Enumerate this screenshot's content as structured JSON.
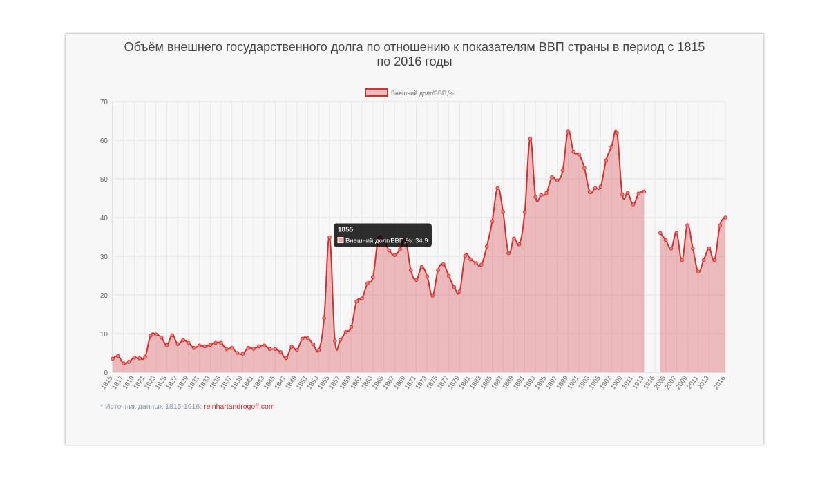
{
  "chart_data": {
    "type": "line",
    "title": "Объём внешнего государственного долга по отношению к показателям ВВП страны в период с 1815 по 2016 годы",
    "categories": [
      "1815",
      "1816",
      "1817",
      "1818",
      "1819",
      "1820",
      "1821",
      "1822",
      "1823",
      "1824",
      "1825",
      "1826",
      "1827",
      "1828",
      "1829",
      "1830",
      "1831",
      "1832",
      "1833",
      "1834",
      "1835",
      "1836",
      "1837",
      "1838",
      "1839",
      "1840",
      "1841",
      "1842",
      "1843",
      "1844",
      "1845",
      "1846",
      "1847",
      "1848",
      "1849",
      "1850",
      "1851",
      "1852",
      "1853",
      "1854",
      "1855",
      "1856",
      "1857",
      "1858",
      "1859",
      "1860",
      "1861",
      "1862",
      "1863",
      "1864",
      "1865",
      "1866",
      "1867",
      "1868",
      "1869",
      "1870",
      "1871",
      "1872",
      "1873",
      "1874",
      "1875",
      "1876",
      "1877",
      "1878",
      "1879",
      "1880",
      "1881",
      "1882",
      "1883",
      "1884",
      "1885",
      "1886",
      "1887",
      "1888",
      "1889",
      "1890",
      "1891",
      "1892",
      "1893",
      "1894",
      "1895",
      "1896",
      "1897",
      "1898",
      "1899",
      "1900",
      "1901",
      "1902",
      "1903",
      "1904",
      "1905",
      "1906",
      "1907",
      "1908",
      "1909",
      "1910",
      "1911",
      "1912",
      "1913",
      "1914",
      "1916",
      "2004",
      "2005",
      "2006",
      "2007",
      "2008",
      "2009",
      "2010",
      "2011",
      "2012",
      "2013",
      "2014",
      "2015",
      "2016"
    ],
    "series": [
      {
        "name": "Внешний долг/ВВП,%",
        "color": "#d32f2f",
        "fill": "rgba(214,72,72,0.35)",
        "values": [
          3.5,
          4.2,
          2.3,
          2.7,
          3.8,
          3.6,
          4.0,
          9.5,
          9.8,
          9.0,
          7.0,
          9.6,
          7.3,
          8.3,
          7.6,
          6.3,
          6.9,
          6.7,
          7.1,
          7.6,
          7.6,
          6.0,
          6.3,
          5.0,
          4.8,
          6.3,
          6.1,
          6.7,
          6.9,
          6.0,
          6.0,
          5.2,
          3.7,
          6.6,
          5.8,
          8.7,
          8.8,
          7.2,
          5.7,
          14.0,
          34.9,
          8.1,
          8.4,
          10.4,
          11.7,
          18.3,
          19.1,
          23.0,
          24.6,
          34.5,
          34.0,
          31.5,
          30.3,
          31.8,
          34.3,
          26.4,
          23.9,
          27.2,
          24.8,
          19.8,
          26.4,
          27.9,
          24.9,
          22.0,
          20.9,
          30.1,
          29.2,
          28.2,
          27.8,
          32.5,
          39.0,
          47.6,
          41.5,
          30.8,
          34.6,
          33.1,
          41.4,
          60.4,
          45.3,
          45.8,
          46.3,
          50.4,
          49.6,
          52.2,
          62.3,
          57.0,
          56.3,
          52.8,
          46.6,
          47.6,
          48.0,
          54.8,
          58.3,
          61.9,
          45.9,
          46.4,
          43.4,
          46.2,
          46.7,
          null,
          null,
          36.0,
          34.2,
          32.0,
          36.0,
          29.0,
          38.0,
          32.0,
          26.0,
          29.0,
          32.0,
          29.0,
          38.0,
          40.0
        ]
      }
    ],
    "ylim": [
      0,
      70
    ],
    "yticks": [
      0,
      10,
      20,
      30,
      40,
      50,
      60,
      70
    ],
    "grid": true,
    "tooltip": {
      "title": "1855",
      "label": "Внешний долг/ВВП,%: 34.9"
    },
    "source_note": "* Источник данных 1815-1916: ",
    "source_link": "reinhartandrogoff.com"
  }
}
